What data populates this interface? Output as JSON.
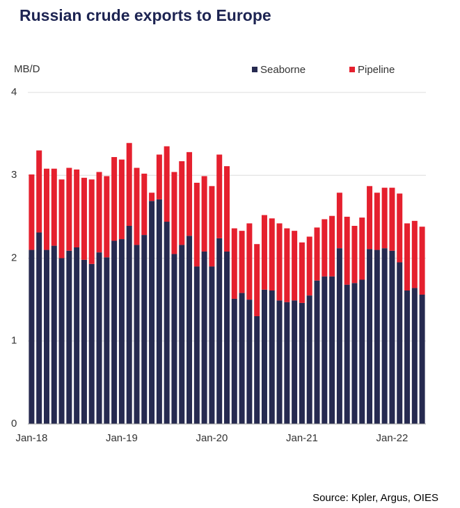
{
  "chart_data": {
    "type": "stacked_bar",
    "title": "Russian crude exports to Europe",
    "y_label": "MB/D",
    "source": "Source: Kpler, Argus, OIES",
    "categories": [
      "Jan-18",
      null,
      null,
      null,
      null,
      null,
      null,
      null,
      null,
      null,
      null,
      null,
      "Jan-19",
      null,
      null,
      null,
      null,
      null,
      null,
      null,
      null,
      null,
      null,
      null,
      "Jan-20",
      null,
      null,
      null,
      null,
      null,
      null,
      null,
      null,
      null,
      null,
      null,
      "Jan-21",
      null,
      null,
      null,
      null,
      null,
      null,
      null,
      null,
      null,
      null,
      null,
      "Jan-22",
      null,
      null,
      null,
      null
    ],
    "series": [
      {
        "name": "Seaborne",
        "color": "#262a50",
        "values": [
          2.1,
          2.31,
          2.1,
          2.15,
          2.0,
          2.09,
          2.13,
          1.98,
          1.93,
          2.07,
          2.01,
          2.21,
          2.23,
          2.39,
          2.16,
          2.28,
          2.69,
          2.71,
          2.44,
          2.05,
          2.16,
          2.27,
          1.9,
          2.08,
          1.9,
          2.24,
          2.08,
          1.51,
          1.58,
          1.5,
          1.3,
          1.62,
          1.61,
          1.49,
          1.47,
          1.49,
          1.46,
          1.55,
          1.73,
          1.78,
          1.78,
          2.12,
          1.68,
          1.7,
          1.74,
          2.11,
          2.1,
          2.12,
          2.09,
          1.95,
          1.61,
          1.64,
          1.56
        ]
      },
      {
        "name": "Pipeline",
        "color": "#e5202e",
        "values": [
          0.91,
          0.99,
          0.98,
          0.93,
          0.95,
          1.0,
          0.94,
          0.99,
          1.02,
          0.97,
          0.98,
          1.01,
          0.96,
          1.0,
          0.93,
          0.74,
          0.1,
          0.54,
          0.91,
          0.99,
          1.01,
          1.01,
          1.01,
          0.91,
          0.97,
          1.01,
          1.03,
          0.85,
          0.75,
          0.92,
          0.87,
          0.9,
          0.87,
          0.93,
          0.89,
          0.84,
          0.73,
          0.71,
          0.64,
          0.69,
          0.73,
          0.67,
          0.82,
          0.69,
          0.75,
          0.76,
          0.69,
          0.73,
          0.76,
          0.83,
          0.81,
          0.81,
          0.82
        ]
      }
    ],
    "ylim": [
      0,
      4
    ],
    "yticks": [
      0,
      1,
      2,
      3,
      4
    ],
    "grid": true,
    "legend": "top-right"
  }
}
